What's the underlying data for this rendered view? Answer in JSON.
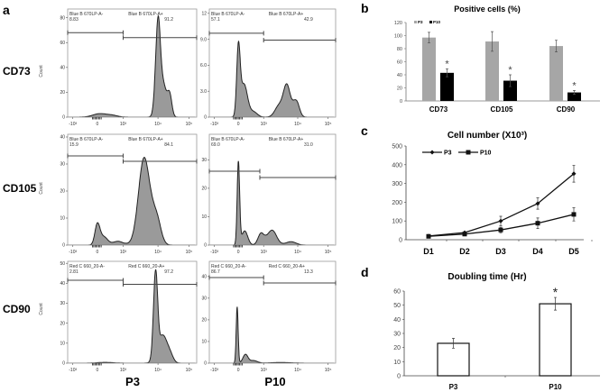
{
  "panel_letters": {
    "a": "a",
    "b": "b",
    "c": "c",
    "d": "d"
  },
  "chart_data": [
    {
      "type": "histogram-grid",
      "panel": "a",
      "y_axis_label": "Count",
      "row_labels": [
        "CD73",
        "CD105",
        "CD90"
      ],
      "col_labels": [
        "P3",
        "P10"
      ],
      "x_tick_labels": [
        "-10³",
        "0",
        "10³",
        "10⁴",
        "10⁵"
      ],
      "histograms": [
        {
          "marker": "CD73",
          "passage": "P3",
          "ylim": [
            0,
            87
          ],
          "yticks": [
            "0",
            "20",
            "40",
            "60",
            "80"
          ],
          "ytick_values": [
            0,
            20,
            40,
            60,
            80
          ],
          "neg_label": "Blue B 670LP-A-",
          "neg_pct": "8.83",
          "pos_label": "Blue B 670LP-A+",
          "pos_pct": "91.2",
          "gate_split": 2.0,
          "neg_gate_level": 68,
          "pos_gate_level": 64,
          "peaks": [
            [
              1.1,
              2.8,
              0.28
            ],
            [
              1.6,
              1.2,
              0.2
            ],
            [
              3.0,
              68,
              0.07
            ],
            [
              3.15,
              28,
              0.12
            ],
            [
              3.38,
              16,
              0.07
            ]
          ]
        },
        {
          "marker": "CD73",
          "passage": "P10",
          "ylim": [
            0,
            12.5
          ],
          "yticks": [
            "0",
            "3.0",
            "6.0",
            "9.0",
            "12"
          ],
          "ytick_values": [
            0,
            3,
            6,
            9,
            12
          ],
          "neg_label": "Blue B 670LP-A-",
          "neg_pct": "57.1",
          "pos_label": "Blue B 670LP-A+",
          "pos_pct": "42.9",
          "gate_split": 2.0,
          "neg_gate_level": 9.7,
          "pos_gate_level": 8.9,
          "peaks": [
            [
              1.0,
              7.6,
              0.07
            ],
            [
              1.22,
              3.8,
              0.14
            ],
            [
              1.6,
              0.6,
              0.15
            ],
            [
              2.45,
              1.3,
              0.12
            ],
            [
              2.68,
              3.6,
              0.1
            ],
            [
              2.95,
              1.9,
              0.1
            ]
          ]
        },
        {
          "marker": "CD105",
          "passage": "P3",
          "ylim": [
            0,
            41
          ],
          "yticks": [
            "0",
            "10",
            "20",
            "30",
            "40"
          ],
          "ytick_values": [
            0,
            10,
            20,
            30,
            40
          ],
          "neg_label": "Blue B 670LP-A-",
          "neg_pct": "15.9",
          "pos_label": "Blue B 670LP-A+",
          "pos_pct": "84.1",
          "gate_split": 2.0,
          "neg_gate_level": 33,
          "pos_gate_level": 31,
          "peaks": [
            [
              1.0,
              7.5,
              0.1
            ],
            [
              1.25,
              3,
              0.15
            ],
            [
              1.8,
              1.4,
              0.2
            ],
            [
              2.6,
              32,
              0.16
            ],
            [
              2.95,
              10,
              0.14
            ]
          ]
        },
        {
          "marker": "CD105",
          "passage": "P10",
          "ylim": [
            0,
            39
          ],
          "yticks": [
            "0",
            "10",
            "20",
            "30"
          ],
          "ytick_values": [
            0,
            10,
            20,
            30
          ],
          "neg_label": "Blue B 670LP-A-",
          "neg_pct": "69.0",
          "pos_label": "Blue B 670LP-A+",
          "pos_pct": "31.0",
          "gate_split": 1.85,
          "neg_gate_level": 26,
          "pos_gate_level": 23.8,
          "peaks": [
            [
              1.0,
              29,
              0.05
            ],
            [
              1.25,
              5,
              0.12
            ],
            [
              1.9,
              4.2,
              0.12
            ],
            [
              2.25,
              5.2,
              0.13
            ],
            [
              2.8,
              1.2,
              0.15
            ]
          ]
        },
        {
          "marker": "CD90",
          "passage": "P3",
          "ylim": [
            0,
            51
          ],
          "yticks": [
            "0",
            "10",
            "20",
            "30",
            "40",
            "50"
          ],
          "ytick_values": [
            0,
            10,
            20,
            30,
            40,
            50
          ],
          "neg_label": "Red C 660_20-A-",
          "neg_pct": "2.81",
          "pos_label": "Red C 660_20-A+",
          "pos_pct": "97.2",
          "gate_split": 2.0,
          "neg_gate_level": 41.5,
          "pos_gate_level": 39.5,
          "peaks": [
            [
              1.3,
              0.4,
              0.3
            ],
            [
              2.93,
              42,
              0.06
            ],
            [
              3.15,
              14,
              0.15
            ],
            [
              3.4,
              3,
              0.1
            ]
          ]
        },
        {
          "marker": "CD90",
          "passage": "P10",
          "ylim": [
            0,
            47
          ],
          "yticks": [
            "0",
            "10",
            "20",
            "30",
            "40"
          ],
          "ytick_values": [
            0,
            10,
            20,
            30,
            40
          ],
          "neg_label": "Red C 660_20-A-",
          "neg_pct": "86.7",
          "pos_label": "Red C 660_20-A+",
          "pos_pct": "13.3",
          "gate_split": 2.0,
          "neg_gate_level": 39.5,
          "pos_gate_level": 37,
          "peaks": [
            [
              0.95,
              26,
              0.04
            ],
            [
              1.28,
              4,
              0.1
            ],
            [
              1.6,
              1.2,
              0.15
            ],
            [
              2.5,
              0.3,
              0.3
            ]
          ]
        }
      ]
    },
    {
      "type": "bar",
      "panel": "b",
      "title": "Positive cells (%)",
      "categories": [
        "CD73",
        "CD105",
        "CD90"
      ],
      "series": [
        {
          "name": "P3",
          "color": "#a6a6a6",
          "values": [
            97,
            91,
            84
          ],
          "errors": [
            8,
            15,
            9
          ]
        },
        {
          "name": "P10",
          "color": "#000000",
          "values": [
            43,
            31,
            13
          ],
          "errors": [
            6,
            9,
            3
          ]
        }
      ],
      "significance": [
        "*",
        "*",
        "*"
      ],
      "ylim": [
        0,
        120
      ],
      "yticks": [
        "0",
        "20",
        "40",
        "60",
        "80",
        "100",
        "120"
      ],
      "ytick_values": [
        0,
        20,
        40,
        60,
        80,
        100,
        120
      ],
      "legend": "top-left"
    },
    {
      "type": "line",
      "panel": "c",
      "title": "Cell number (X10³)",
      "categories": [
        "D1",
        "D2",
        "D3",
        "D4",
        "D5"
      ],
      "series": [
        {
          "name": "P3",
          "marker": "diamond",
          "values": [
            20,
            38,
            100,
            193,
            352
          ],
          "errors": [
            5,
            5,
            25,
            30,
            45
          ]
        },
        {
          "name": "P10",
          "marker": "square",
          "values": [
            18,
            30,
            52,
            88,
            135
          ],
          "errors": [
            5,
            5,
            15,
            28,
            35
          ]
        }
      ],
      "ylim": [
        0,
        500
      ],
      "yticks": [
        "0",
        "100",
        "200",
        "300",
        "400",
        "500"
      ],
      "ytick_values": [
        0,
        100,
        200,
        300,
        400,
        500
      ],
      "legend": "top-left"
    },
    {
      "type": "bar",
      "panel": "d",
      "title": "Doubling time (Hr)",
      "categories": [
        "P3",
        "P10"
      ],
      "values": [
        23,
        51
      ],
      "errors": [
        3.5,
        4.5
      ],
      "significance": [
        "",
        "*"
      ],
      "ylim": [
        0,
        60
      ],
      "yticks": [
        "0",
        "10",
        "20",
        "30",
        "40",
        "50",
        "60"
      ],
      "ytick_values": [
        0,
        10,
        20,
        30,
        40,
        50,
        60
      ]
    }
  ]
}
